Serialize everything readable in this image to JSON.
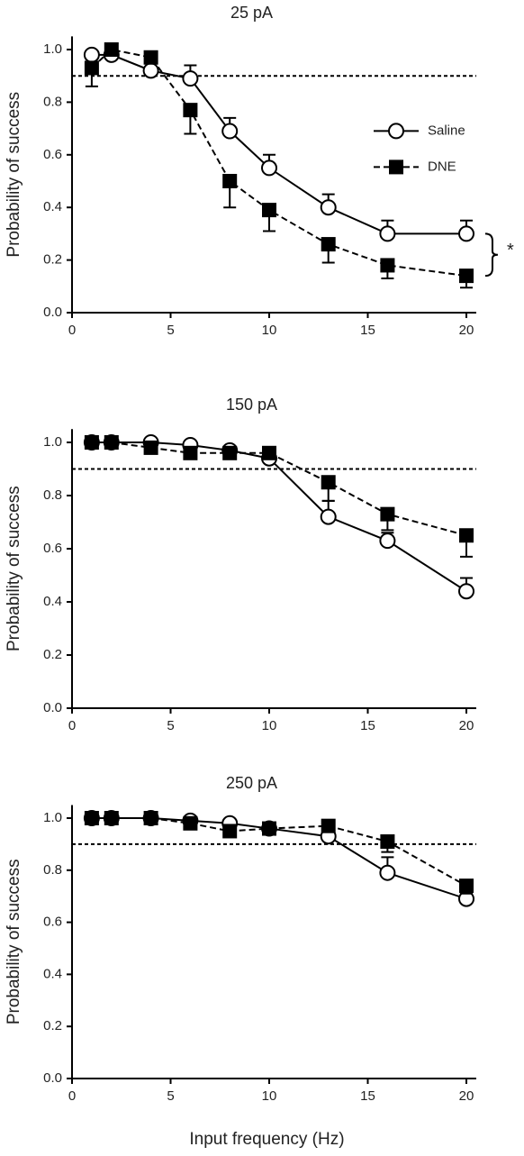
{
  "chart_data": [
    {
      "type": "line",
      "title": "25 pA",
      "ylabel": "Probability of success",
      "annotation": "*",
      "x": [
        1,
        2,
        4,
        6,
        8,
        10,
        13,
        16,
        20
      ],
      "series": [
        {
          "name": "Saline",
          "color": "#000000",
          "marker": "circle",
          "dash": false,
          "error_direction": "up",
          "values": [
            0.98,
            0.98,
            0.92,
            0.89,
            0.69,
            0.55,
            0.4,
            0.3,
            0.3
          ],
          "errors": [
            0.01,
            0.01,
            0.01,
            0.05,
            0.05,
            0.05,
            0.05,
            0.05,
            0.05
          ]
        },
        {
          "name": "DNE",
          "color": "#000000",
          "marker": "square",
          "dash": true,
          "error_direction": "down",
          "values": [
            0.93,
            1.0,
            0.97,
            0.77,
            0.5,
            0.39,
            0.26,
            0.18,
            0.14
          ],
          "errors": [
            0.07,
            0.01,
            0.02,
            0.09,
            0.1,
            0.08,
            0.07,
            0.05,
            0.045
          ]
        }
      ],
      "hline": 0.9,
      "legend": "upper right",
      "xlim": [
        0,
        20.5
      ],
      "xticks": [
        0,
        5,
        10,
        15,
        20
      ],
      "ylim": [
        0,
        1.05
      ],
      "yticks": [
        {
          "value": 0,
          "label": "0.0"
        },
        0.2,
        0.4,
        0.6,
        0.8,
        {
          "value": 1,
          "label": "1.0"
        }
      ]
    },
    {
      "type": "line",
      "title": "150 pA",
      "ylabel": "Probability of success",
      "x": [
        1,
        2,
        4,
        6,
        8,
        10,
        13,
        16,
        20
      ],
      "series": [
        {
          "color": "#000000",
          "marker": "circle",
          "dash": false,
          "error_direction": "up",
          "values": [
            1.0,
            1.0,
            1.0,
            0.99,
            0.97,
            0.94,
            0.72,
            0.63,
            0.44
          ],
          "errors": [
            0.01,
            0.01,
            0.01,
            0.01,
            0.01,
            0.02,
            0.06,
            0.03,
            0.05
          ]
        },
        {
          "color": "#000000",
          "marker": "square",
          "dash": true,
          "error_direction": "down",
          "values": [
            1.0,
            1.0,
            0.98,
            0.96,
            0.96,
            0.96,
            0.85,
            0.73,
            0.65
          ],
          "errors": [
            0.01,
            0.01,
            0.01,
            0.01,
            0.02,
            0.02,
            0.07,
            0.06,
            0.08
          ]
        }
      ],
      "hline": 0.9,
      "xlim": [
        0,
        20.5
      ],
      "xticks": [
        0,
        5,
        10,
        15,
        20
      ],
      "ylim": [
        0,
        1.05
      ],
      "yticks": [
        {
          "value": 0,
          "label": "0.0"
        },
        0.2,
        0.4,
        0.6,
        0.8,
        {
          "value": 1,
          "label": "1.0"
        }
      ]
    },
    {
      "type": "line",
      "title": "250 pA",
      "ylabel": "Probability of success",
      "xlabel": "Input frequency (Hz)",
      "x": [
        1,
        2,
        4,
        6,
        8,
        10,
        13,
        16,
        20
      ],
      "series": [
        {
          "color": "#000000",
          "marker": "circle",
          "dash": false,
          "error_direction": "up",
          "values": [
            1.0,
            1.0,
            1.0,
            0.99,
            0.98,
            0.96,
            0.93,
            0.79,
            0.69
          ],
          "errors": [
            0.01,
            0.01,
            0.01,
            0.01,
            0.01,
            0.01,
            0.02,
            0.06,
            0.02
          ]
        },
        {
          "color": "#000000",
          "marker": "square",
          "dash": true,
          "error_direction": "down",
          "values": [
            1.0,
            1.0,
            1.0,
            0.98,
            0.95,
            0.96,
            0.97,
            0.91,
            0.74
          ],
          "errors": [
            0.01,
            0.01,
            0.01,
            0.01,
            0.01,
            0.01,
            0.01,
            0.04,
            0.03
          ]
        }
      ],
      "hline": 0.9,
      "xlim": [
        0,
        20.5
      ],
      "xticks": [
        0,
        5,
        10,
        15,
        20
      ],
      "ylim": [
        0,
        1.05
      ],
      "yticks": [
        {
          "value": 0,
          "label": "0.0"
        },
        0.2,
        0.4,
        0.6,
        0.8,
        {
          "value": 1,
          "label": "1.0"
        }
      ]
    }
  ]
}
